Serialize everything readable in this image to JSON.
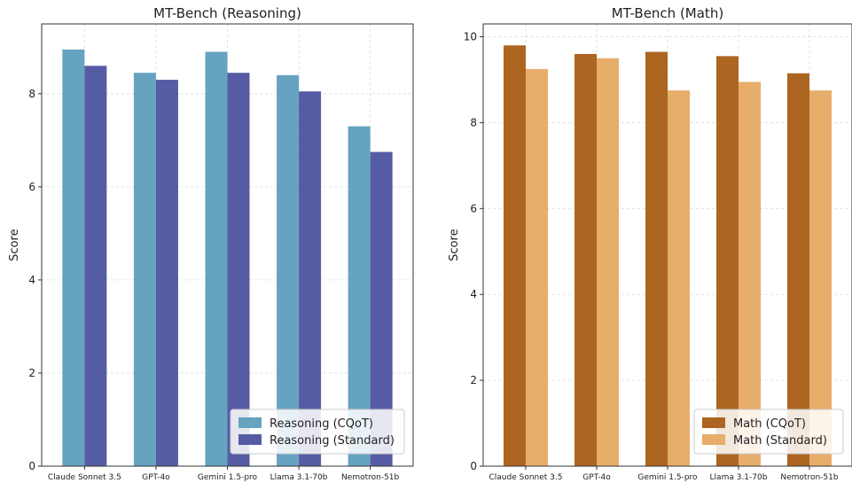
{
  "chart_data": [
    {
      "type": "bar",
      "title": "MT-Bench (Reasoning)",
      "xlabel": "",
      "ylabel": "Score",
      "ylim": [
        0,
        9.5
      ],
      "yticks": [
        0,
        2,
        4,
        6,
        8
      ],
      "grid": true,
      "legend_position": "lower-right",
      "categories": [
        "Claude Sonnet 3.5",
        "GPT-4o",
        "Gemini 1.5-pro",
        "Llama 3.1-70b",
        "Nemotron-51b"
      ],
      "series": [
        {
          "name": "Reasoning (CQoT)",
          "color": "#65a3c0",
          "values": [
            8.95,
            8.45,
            8.9,
            8.4,
            7.3
          ]
        },
        {
          "name": "Reasoning (Standard)",
          "color": "#565ca3",
          "values": [
            8.6,
            8.3,
            8.45,
            8.05,
            6.75
          ]
        }
      ]
    },
    {
      "type": "bar",
      "title": "MT-Bench (Math)",
      "xlabel": "",
      "ylabel": "Score",
      "ylim": [
        0,
        10.3
      ],
      "yticks": [
        0,
        2,
        4,
        6,
        8,
        10
      ],
      "grid": true,
      "legend_position": "lower-right",
      "categories": [
        "Claude Sonnet 3.5",
        "GPT-4o",
        "Gemini 1.5-pro",
        "Llama 3.1-70b",
        "Nemotron-51b"
      ],
      "series": [
        {
          "name": "Math (CQoT)",
          "color": "#ad6522",
          "values": [
            9.8,
            9.6,
            9.65,
            9.55,
            9.15
          ]
        },
        {
          "name": "Math (Standard)",
          "color": "#e6ad6b",
          "values": [
            9.25,
            9.5,
            8.75,
            8.95,
            8.75
          ]
        }
      ]
    }
  ]
}
